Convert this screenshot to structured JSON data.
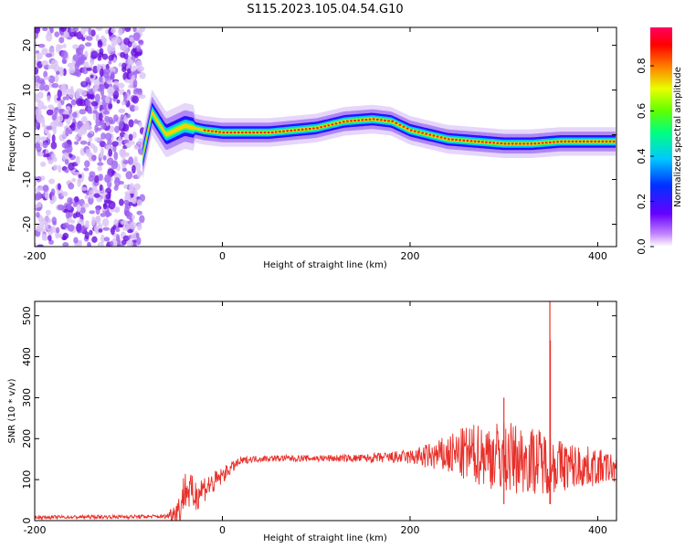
{
  "title": "S115.2023.105.04.54.G10",
  "colors": {
    "snr_line": "#e8302a",
    "axis": "#000000",
    "background": "#ffffff"
  },
  "chart_data": [
    {
      "type": "heatmap",
      "title": "S115.2023.105.04.54.G10",
      "xlabel": "Height of straight line (km)",
      "ylabel": "Frequency (Hz)",
      "xlim": [
        -200,
        420
      ],
      "ylim": [
        -25,
        24
      ],
      "x_ticks": [
        -200,
        0,
        200,
        400
      ],
      "x_tick_labels": [
        "-200",
        "0",
        "200",
        "400"
      ],
      "y_ticks": [
        -20,
        -10,
        0,
        10,
        20
      ],
      "y_tick_labels": [
        "-20",
        "-10",
        "0",
        "10",
        "20"
      ],
      "colorbar": {
        "label": "Normalized spectral amplitude",
        "range": [
          0,
          0.97
        ],
        "ticks": [
          0,
          0.2,
          0.4,
          0.6,
          0.8
        ],
        "tick_labels": [
          "0.0",
          "0.2",
          "0.4",
          "0.6",
          "0.8"
        ],
        "colormap": "hsv-reversed (magenta-red-yellow-green-cyan-blue-purple-white)"
      },
      "noise_region_x": [
        -200,
        -85
      ],
      "ridge": {
        "x": [
          -85,
          -75,
          -60,
          -40,
          -20,
          0,
          50,
          100,
          130,
          160,
          180,
          200,
          240,
          270,
          300,
          330,
          360,
          390,
          420
        ],
        "freq_hz": [
          -5,
          5,
          0,
          2,
          1,
          0.5,
          0.5,
          1.5,
          3,
          3.5,
          3,
          1,
          -1,
          -1.5,
          -2,
          -2,
          -1.5,
          -1.5,
          -1.5
        ]
      }
    },
    {
      "type": "line",
      "xlabel": "Height of straight line (km)",
      "ylabel": "SNR (10 * v/v)",
      "xlim": [
        -200,
        420
      ],
      "ylim": [
        0,
        535
      ],
      "x_ticks": [
        -200,
        0,
        200,
        400
      ],
      "x_tick_labels": [
        "-200",
        "0",
        "200",
        "400"
      ],
      "y_ticks": [
        0,
        100,
        200,
        300,
        400,
        500
      ],
      "y_tick_labels": [
        "0",
        "100",
        "200",
        "300",
        "400",
        "500"
      ],
      "series": [
        {
          "envelope": {
            "x": [
              -200,
              -60,
              -45,
              -40,
              -30,
              -20,
              -10,
              0,
              10,
              20,
              30,
              50,
              100,
              150,
              200,
              230,
              260,
              280,
              300,
              320,
              340,
              350,
              360,
              380,
              400,
              420
            ],
            "mean": [
              8,
              10,
              30,
              80,
              60,
              80,
              90,
              110,
              130,
              145,
              150,
              152,
              152,
              152,
              155,
              158,
              162,
              162,
              155,
              150,
              145,
              140,
              135,
              132,
              130,
              128
            ],
            "spread": [
              4,
              5,
              40,
              50,
              45,
              35,
              30,
              20,
              14,
              10,
              8,
              8,
              8,
              10,
              18,
              40,
              70,
              80,
              90,
              85,
              80,
              75,
              65,
              55,
              45,
              35
            ]
          },
          "spikes": [
            {
              "x": 300,
              "y": 300
            },
            {
              "x": 349,
              "y": 535
            },
            {
              "x": 349.5,
              "y": 440
            }
          ]
        }
      ]
    }
  ]
}
